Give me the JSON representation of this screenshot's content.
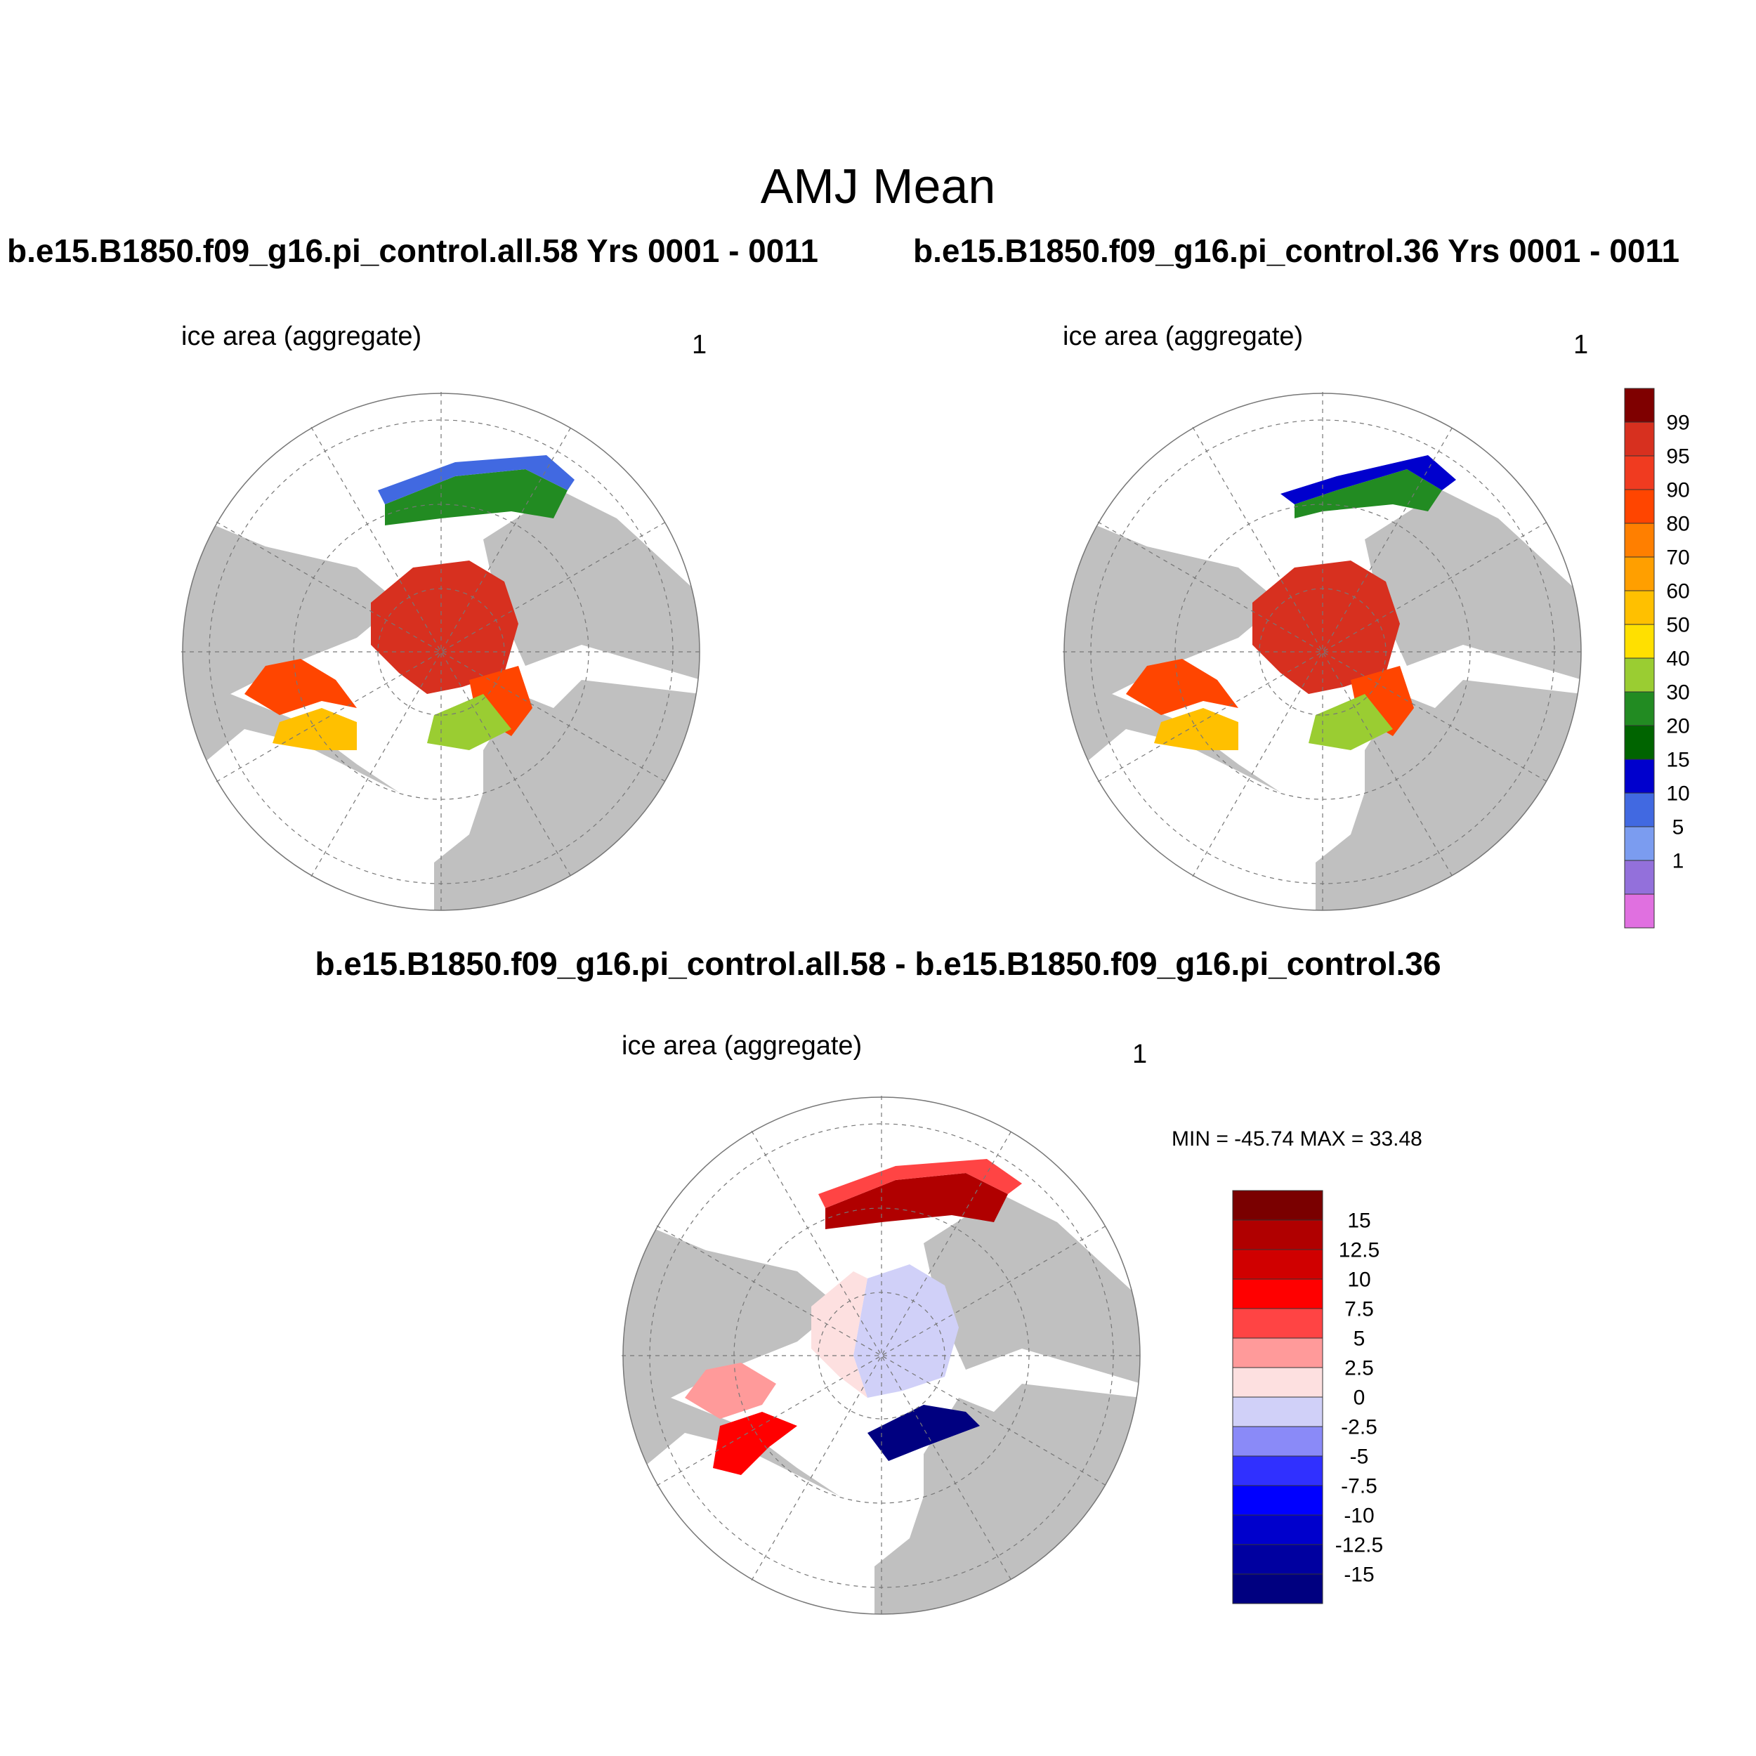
{
  "title": "AMJ Mean",
  "panels": [
    {
      "id": "case1",
      "run": "b.e15.B1850.f09_g16.pi_control.all.58  Yrs 0001 - 0011",
      "var": "ice area  (aggregate)",
      "units": "1"
    },
    {
      "id": "case2",
      "run": "b.e15.B1850.f09_g16.pi_control.36  Yrs 0001 - 0011",
      "var": "ice area  (aggregate)",
      "units": "1"
    }
  ],
  "difference": {
    "title": "b.e15.B1850.f09_g16.pi_control.all.58 - b.e15.B1850.f09_g16.pi_control.36",
    "var": "ice area  (aggregate)",
    "units": "1",
    "minmax": "MIN = -45.74 MAX =  33.48"
  },
  "colorbar_main": {
    "labels": [
      "99",
      "95",
      "90",
      "80",
      "70",
      "60",
      "50",
      "40",
      "30",
      "20",
      "15",
      "10",
      "5",
      "1"
    ],
    "colors": [
      "#7f0000",
      "#d7301f",
      "#f03b20",
      "#ff4500",
      "#ff7f00",
      "#ff9f00",
      "#ffc000",
      "#ffe000",
      "#9acd32",
      "#228b22",
      "#006400",
      "#0000cd",
      "#4169e1",
      "#7b9cf0",
      "#9370db",
      "#e070e0"
    ]
  },
  "colorbar_diff": {
    "labels": [
      "15",
      "12.5",
      "10",
      "7.5",
      "5",
      "2.5",
      "0",
      "-2.5",
      "-5",
      "-7.5",
      "-10",
      "-12.5",
      "-15"
    ],
    "colors": [
      "#7a0000",
      "#b00000",
      "#d00000",
      "#ff0000",
      "#ff4444",
      "#ff9a9a",
      "#fde0e0",
      "#d0d0f8",
      "#8a8af8",
      "#3030ff",
      "#0000ff",
      "#0000cc",
      "#0000a0",
      "#000080"
    ]
  },
  "colors": {
    "land": "#c0c0c0",
    "ocean": "#ffffff",
    "grid": "#777777"
  }
}
